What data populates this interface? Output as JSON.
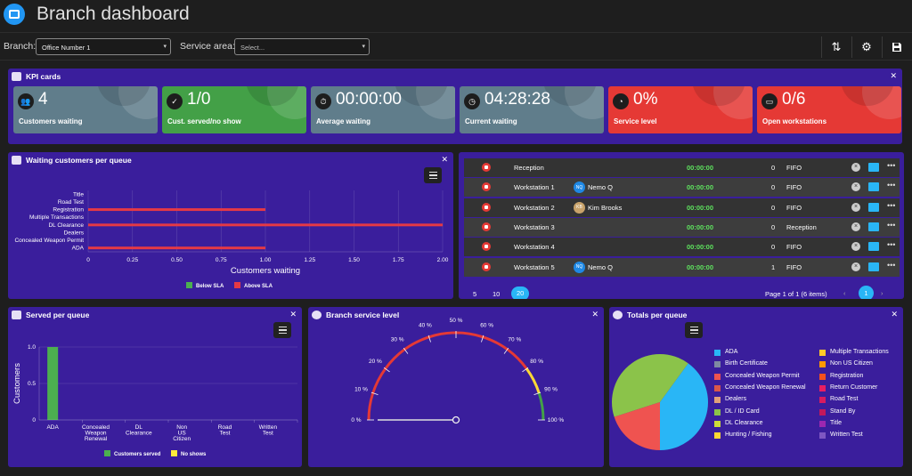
{
  "header": {
    "title": "Branch dashboard",
    "logo_icon": "store-icon"
  },
  "toolbar": {
    "branch_label": "Branch:",
    "branch_value": "Office Number 1",
    "service_area_label": "Service area:",
    "service_area_placeholder": "Select...",
    "actions": [
      "sort-icon",
      "gear-icon",
      "save-icon"
    ]
  },
  "kpi_panel": {
    "title": "KPI cards",
    "cards": [
      {
        "value": "4",
        "label": "Customers waiting",
        "icon": "people-icon",
        "color": "#607d8b"
      },
      {
        "value": "1/0",
        "label": "Cust. served/no show",
        "icon": "user-check-icon",
        "color": "#43a047"
      },
      {
        "value": "00:00:00",
        "label": "Average waiting",
        "icon": "stopwatch-icon",
        "color": "#607d8b"
      },
      {
        "value": "04:28:28",
        "label": "Current waiting",
        "icon": "clock-plus-icon",
        "color": "#607d8b"
      },
      {
        "value": "0%",
        "label": "Service level",
        "icon": "gauge-icon",
        "color": "#e53935"
      },
      {
        "value": "0/6",
        "label": "Open workstations",
        "icon": "monitor-icon",
        "color": "#e53935"
      }
    ]
  },
  "waiting_panel": {
    "title": "Waiting customers per queue",
    "chart_data": {
      "type": "bar",
      "orientation": "horizontal",
      "categories": [
        "Title",
        "Road Test",
        "Registration",
        "Multiple Transactions",
        "DL Clearance",
        "Dealers",
        "Concealed Weapon Permit",
        "ADA"
      ],
      "series": [
        {
          "name": "Below SLA",
          "values": [
            0,
            0,
            0,
            0,
            0,
            0,
            0,
            0
          ],
          "color": "#4caf50"
        },
        {
          "name": "Above SLA",
          "values": [
            0,
            0,
            1,
            0,
            2,
            0,
            0,
            1
          ],
          "color": "#e53945"
        }
      ],
      "xlabel": "Customers waiting",
      "xlim": [
        0,
        2
      ],
      "xticks": [
        "0",
        "0.25",
        "0.50",
        "0.75",
        "1.00",
        "1.25",
        "1.50",
        "1.75",
        "2.00"
      ],
      "legend": "bottom"
    }
  },
  "workstations_panel": {
    "rows": [
      {
        "name": "Reception",
        "initials": "",
        "user": "",
        "avatar_color": "",
        "time": "00:00:00",
        "count": "0",
        "queue": "FIFO"
      },
      {
        "name": "Workstation 1",
        "initials": "NQ",
        "user": "Nemo Q",
        "avatar_color": "#1e88e5",
        "time": "00:00:00",
        "count": "0",
        "queue": "FIFO"
      },
      {
        "name": "Workstation 2",
        "initials": "KB",
        "user": "Kim Brooks",
        "avatar_color": "#c8a26a",
        "time": "00:00:00",
        "count": "0",
        "queue": "FIFO"
      },
      {
        "name": "Workstation 3",
        "initials": "",
        "user": "",
        "avatar_color": "",
        "time": "00:00:00",
        "count": "0",
        "queue": "Reception"
      },
      {
        "name": "Workstation 4",
        "initials": "",
        "user": "",
        "avatar_color": "",
        "time": "00:00:00",
        "count": "0",
        "queue": "FIFO"
      },
      {
        "name": "Workstation 5",
        "initials": "NQ",
        "user": "Nemo Q",
        "avatar_color": "#1e88e5",
        "time": "00:00:00",
        "count": "1",
        "queue": "FIFO"
      }
    ],
    "page_sizes": [
      "5",
      "10",
      "20"
    ],
    "active_page_size": "20",
    "page_info": "Page 1 of 1 (6 items)",
    "current_page": "1"
  },
  "served_panel": {
    "title": "Served per queue",
    "chart_data": {
      "type": "bar",
      "categories": [
        "ADA",
        "Concealed Weapon Renewal",
        "DL Clearance",
        "Non US Citizen",
        "Road Test",
        "Written Test"
      ],
      "category_lines": [
        [
          "ADA"
        ],
        [
          "Concealed",
          "Weapon",
          "Renewal"
        ],
        [
          "DL",
          "Clearance"
        ],
        [
          "Non",
          "US",
          "Citizen"
        ],
        [
          "Road",
          "Test"
        ],
        [
          "Written",
          "Test"
        ]
      ],
      "series": [
        {
          "name": "Customers served",
          "values": [
            1,
            0,
            0,
            0,
            0,
            0
          ],
          "color": "#4caf50"
        },
        {
          "name": "No shows",
          "values": [
            0,
            0,
            0,
            0,
            0,
            0
          ],
          "color": "#ffeb3b"
        }
      ],
      "ylabel": "Customers",
      "ylim": [
        0,
        1
      ],
      "yticks": [
        "0",
        "0.5",
        "1.0"
      ],
      "legend": "bottom"
    }
  },
  "service_level_panel": {
    "title": "Branch service level",
    "chart_data": {
      "type": "gauge",
      "value": 0,
      "min": 0,
      "max": 100,
      "ticks": [
        "0 %",
        "10 %",
        "20 %",
        "30 %",
        "40 %",
        "50 %",
        "60 %",
        "70 %",
        "80 %",
        "90 %",
        "100 %"
      ],
      "bands": [
        {
          "from": 0,
          "to": 80,
          "color": "#e53935"
        },
        {
          "from": 80,
          "to": 90,
          "color": "#fdd835"
        },
        {
          "from": 90,
          "to": 100,
          "color": "#43a047"
        }
      ]
    }
  },
  "totals_panel": {
    "title": "Totals per queue",
    "chart_data": {
      "type": "pie",
      "slices": [
        {
          "label": "ADA",
          "value": 2,
          "color": "#29b6f6"
        },
        {
          "label": "DL / ID Card",
          "value": 2,
          "color": "#8bc34a"
        },
        {
          "label": "Concealed Weapon Permit",
          "value": 1,
          "color": "#ef5350"
        }
      ],
      "legend": [
        {
          "label": "ADA",
          "color": "#29b6f6"
        },
        {
          "label": "Birth Certificate",
          "color": "#7e8aa2"
        },
        {
          "label": "Concealed Weapon Permit",
          "color": "#ef5350"
        },
        {
          "label": "Concealed Weapon Renewal",
          "color": "#d9574a"
        },
        {
          "label": "Dealers",
          "color": "#e0a07a"
        },
        {
          "label": "DL / ID Card",
          "color": "#8bc34a"
        },
        {
          "label": "DL Clearance",
          "color": "#cddc39"
        },
        {
          "label": "Hunting / Fishing",
          "color": "#fdd835"
        },
        {
          "label": "Multiple Transactions",
          "color": "#ffca28"
        },
        {
          "label": "Non US Citizen",
          "color": "#ff9800"
        },
        {
          "label": "Registration",
          "color": "#f4511e"
        },
        {
          "label": "Return Customer",
          "color": "#e91e63"
        },
        {
          "label": "Road Test",
          "color": "#d81b60"
        },
        {
          "label": "Stand By",
          "color": "#c2185b"
        },
        {
          "label": "Title",
          "color": "#9c27b0"
        },
        {
          "label": "Written Test",
          "color": "#7e57c2"
        }
      ]
    }
  }
}
